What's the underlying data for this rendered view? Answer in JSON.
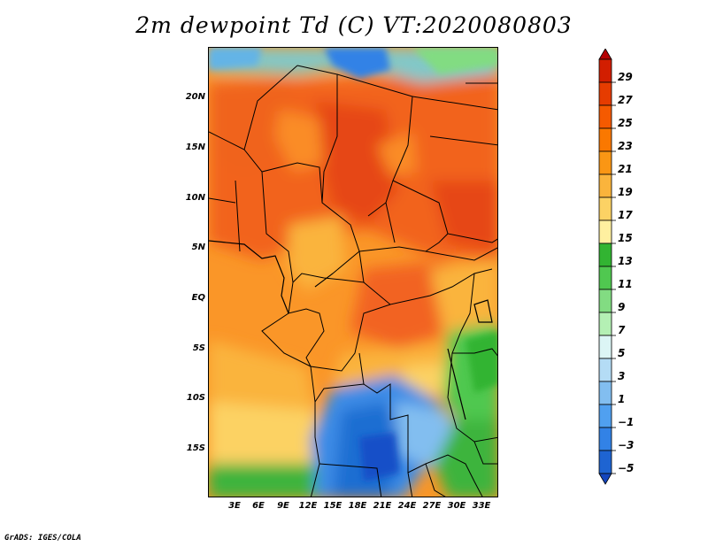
{
  "title": "2m dewpoint Td (C) VT:2020080803",
  "credit": "GrADS: IGES/COLA",
  "map": {
    "lat_labels": [
      "20N",
      "15N",
      "10N",
      "5N",
      "EQ",
      "5S",
      "10S",
      "15S"
    ],
    "lon_labels": [
      "3E",
      "6E",
      "9E",
      "12E",
      "15E",
      "18E",
      "21E",
      "24E",
      "27E",
      "30E",
      "33E"
    ]
  },
  "colorbar": {
    "labels": [
      "29",
      "27",
      "25",
      "23",
      "21",
      "19",
      "17",
      "15",
      "13",
      "11",
      "9",
      "7",
      "5",
      "3",
      "1",
      "−1",
      "−3",
      "−5"
    ],
    "colors": [
      "#b40000",
      "#d21e00",
      "#e63c00",
      "#f55a00",
      "#fa7800",
      "#fa9614",
      "#fab43c",
      "#fcd264",
      "#fff0a0",
      "#32b432",
      "#50c850",
      "#82dc82",
      "#b4f0b4",
      "#dcf5f5",
      "#b4dcf5",
      "#82bef0",
      "#50a0f0",
      "#3282e6",
      "#1e64d2",
      "#1446be"
    ]
  }
}
